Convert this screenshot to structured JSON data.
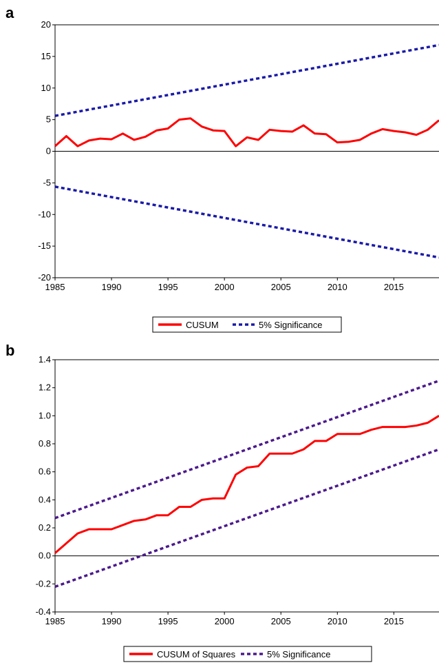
{
  "panels": {
    "a": {
      "label": "a"
    },
    "b": {
      "label": "b"
    }
  },
  "chart_data": [
    {
      "type": "line",
      "title": "",
      "xlabel": "",
      "ylabel": "",
      "xlim": [
        1985,
        2019
      ],
      "ylim": [
        -20,
        20
      ],
      "x_ticks": [
        1985,
        1990,
        1995,
        2000,
        2005,
        2010,
        2015
      ],
      "y_ticks": [
        20,
        15,
        10,
        5,
        0,
        -5,
        -10,
        -15,
        -20
      ],
      "zero_line": true,
      "grid": false,
      "legend": [
        "CUSUM",
        "5% Significance"
      ],
      "legend_placement": "bottom-center",
      "colors": {
        "cusum": "#ff0000",
        "significance": "#1a1aa8"
      },
      "series": [
        {
          "name": "CUSUM",
          "style": "solid",
          "x": [
            1985,
            1986,
            1987,
            1988,
            1989,
            1990,
            1991,
            1992,
            1993,
            1994,
            1995,
            1996,
            1997,
            1998,
            1999,
            2000,
            2001,
            2002,
            2003,
            2004,
            2005,
            2006,
            2007,
            2008,
            2009,
            2010,
            2011,
            2012,
            2013,
            2014,
            2015,
            2016,
            2017,
            2018,
            2019
          ],
          "values": [
            0.8,
            2.4,
            0.8,
            1.7,
            2.0,
            1.9,
            2.8,
            1.8,
            2.3,
            3.3,
            3.6,
            5.0,
            5.2,
            3.9,
            3.3,
            3.2,
            0.8,
            2.2,
            1.8,
            3.4,
            3.2,
            3.1,
            4.1,
            2.8,
            2.7,
            1.4,
            1.5,
            1.8,
            2.8,
            3.5,
            3.2,
            3.0,
            2.6,
            3.4,
            4.9
          ]
        },
        {
          "name": "5% Significance",
          "style": "dashed",
          "x": [
            1985,
            2019
          ],
          "values": [
            5.6,
            16.8
          ]
        },
        {
          "name": "5% Significance",
          "style": "dashed",
          "x": [
            1985,
            2019
          ],
          "values": [
            -5.6,
            -16.8
          ]
        }
      ]
    },
    {
      "type": "line",
      "title": "",
      "xlabel": "",
      "ylabel": "",
      "xlim": [
        1985,
        2019
      ],
      "ylim": [
        -0.4,
        1.4
      ],
      "x_ticks": [
        1985,
        1990,
        1995,
        2000,
        2005,
        2010,
        2015
      ],
      "y_ticks": [
        1.4,
        1.2,
        1.0,
        0.8,
        0.6,
        0.4,
        0.2,
        0.0,
        -0.2,
        -0.4
      ],
      "zero_line": true,
      "grid": false,
      "legend": [
        "CUSUM of Squares",
        "5% Significance"
      ],
      "legend_placement": "bottom-center",
      "colors": {
        "cusum": "#ff0000",
        "significance": "#4b1a8c"
      },
      "series": [
        {
          "name": "CUSUM of Squares",
          "style": "solid",
          "x": [
            1985,
            1986,
            1987,
            1988,
            1989,
            1990,
            1991,
            1992,
            1993,
            1994,
            1995,
            1996,
            1997,
            1998,
            1999,
            2000,
            2001,
            2002,
            2003,
            2004,
            2005,
            2006,
            2007,
            2008,
            2009,
            2010,
            2011,
            2012,
            2013,
            2014,
            2015,
            2016,
            2017,
            2018,
            2019
          ],
          "values": [
            0.02,
            0.09,
            0.16,
            0.19,
            0.19,
            0.19,
            0.22,
            0.25,
            0.26,
            0.29,
            0.29,
            0.35,
            0.35,
            0.4,
            0.41,
            0.41,
            0.58,
            0.63,
            0.64,
            0.73,
            0.73,
            0.73,
            0.76,
            0.82,
            0.82,
            0.87,
            0.87,
            0.87,
            0.9,
            0.92,
            0.92,
            0.92,
            0.93,
            0.95,
            1.0
          ]
        },
        {
          "name": "5% Significance",
          "style": "dashed",
          "x": [
            1985,
            2019
          ],
          "values": [
            0.27,
            1.25
          ]
        },
        {
          "name": "5% Significance",
          "style": "dashed",
          "x": [
            1985,
            2019
          ],
          "values": [
            -0.22,
            0.76
          ]
        }
      ]
    }
  ]
}
